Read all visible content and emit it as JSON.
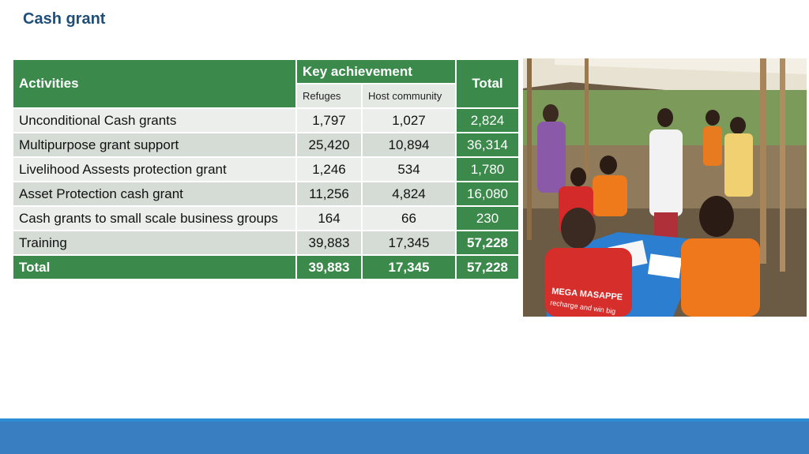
{
  "title": "Cash grant",
  "table": {
    "col_activities": "Activities",
    "col_key": "Key achievement",
    "col_total": "Total",
    "sub_refuges": "Refuges",
    "sub_host": "Host community",
    "rows": [
      {
        "activity": "Unconditional Cash grants",
        "refuges": "1,797",
        "host": "1,027",
        "total": "2,824"
      },
      {
        "activity": "Multipurpose grant support",
        "refuges": "25,420",
        "host": "10,894",
        "total": "36,314"
      },
      {
        "activity": "Livelihood Assests protection grant",
        "refuges": "1,246",
        "host": "534",
        "total": "1,780"
      },
      {
        "activity": "Asset Protection cash grant",
        "refuges": "11,256",
        "host": "4,824",
        "total": "16,080"
      },
      {
        "activity": "Cash grants to small scale business groups",
        "refuges": "164",
        "host": "66",
        "total": "230"
      },
      {
        "activity": "Training",
        "refuges": "39,883",
        "host": "17,345",
        "total": "57,228"
      }
    ],
    "total_row": {
      "label": "Total",
      "refuges": "39,883",
      "host": "17,345",
      "total": "57,228"
    }
  },
  "photo": {
    "shirt_text_1": "MEGA MASAPPE",
    "shirt_text_2": "recharge and win big"
  },
  "colors": {
    "header_green": "#3b8a4b",
    "title_blue": "#1f4e79",
    "footer_blue": "#3a7ec2"
  }
}
